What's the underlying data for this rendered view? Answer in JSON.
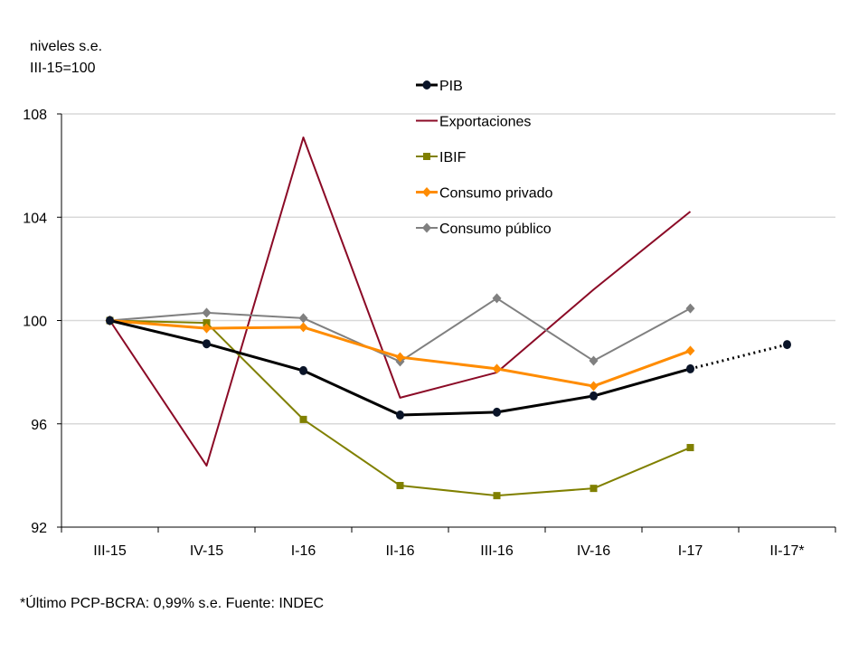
{
  "chart_data": {
    "type": "line",
    "ylabel_lines": [
      "niveles s.e.",
      "III-15=100"
    ],
    "footnote": "*Último PCP-BCRA: 0,99% s.e.  Fuente: INDEC",
    "categories": [
      "III-15",
      "IV-15",
      "I-16",
      "II-16",
      "III-16",
      "IV-16",
      "I-17",
      "II-17*"
    ],
    "ylim": [
      92,
      108
    ],
    "yticks": [
      92,
      96,
      100,
      104,
      108
    ],
    "grid": true,
    "legend_position": "top-center",
    "series": [
      {
        "name": "PIB",
        "color": "#000000",
        "marker": "circle",
        "width": 3,
        "values": [
          100,
          99.1,
          98.06,
          96.34,
          96.45,
          97.08,
          98.13,
          99.07
        ],
        "dotted_last_segment": true
      },
      {
        "name": "Exportaciones",
        "color": "#8B0A26",
        "marker": "none",
        "width": 2,
        "values": [
          100,
          94.38,
          107.09,
          97.01,
          97.99,
          101.2,
          104.22,
          null
        ]
      },
      {
        "name": "IBIF",
        "color": "#808000",
        "marker": "square",
        "width": 2,
        "values": [
          100,
          99.91,
          96.17,
          93.61,
          93.22,
          93.5,
          95.08,
          null
        ]
      },
      {
        "name": "Consumo privado",
        "color": "#FF8C00",
        "marker": "diamond",
        "width": 3,
        "values": [
          100,
          99.7,
          99.74,
          98.58,
          98.13,
          97.46,
          98.83,
          null
        ]
      },
      {
        "name": "Consumo público",
        "color": "#808080",
        "marker": "diamond",
        "width": 2,
        "values": [
          100,
          100.3,
          100.09,
          98.41,
          100.86,
          98.44,
          100.47,
          null
        ]
      }
    ]
  }
}
